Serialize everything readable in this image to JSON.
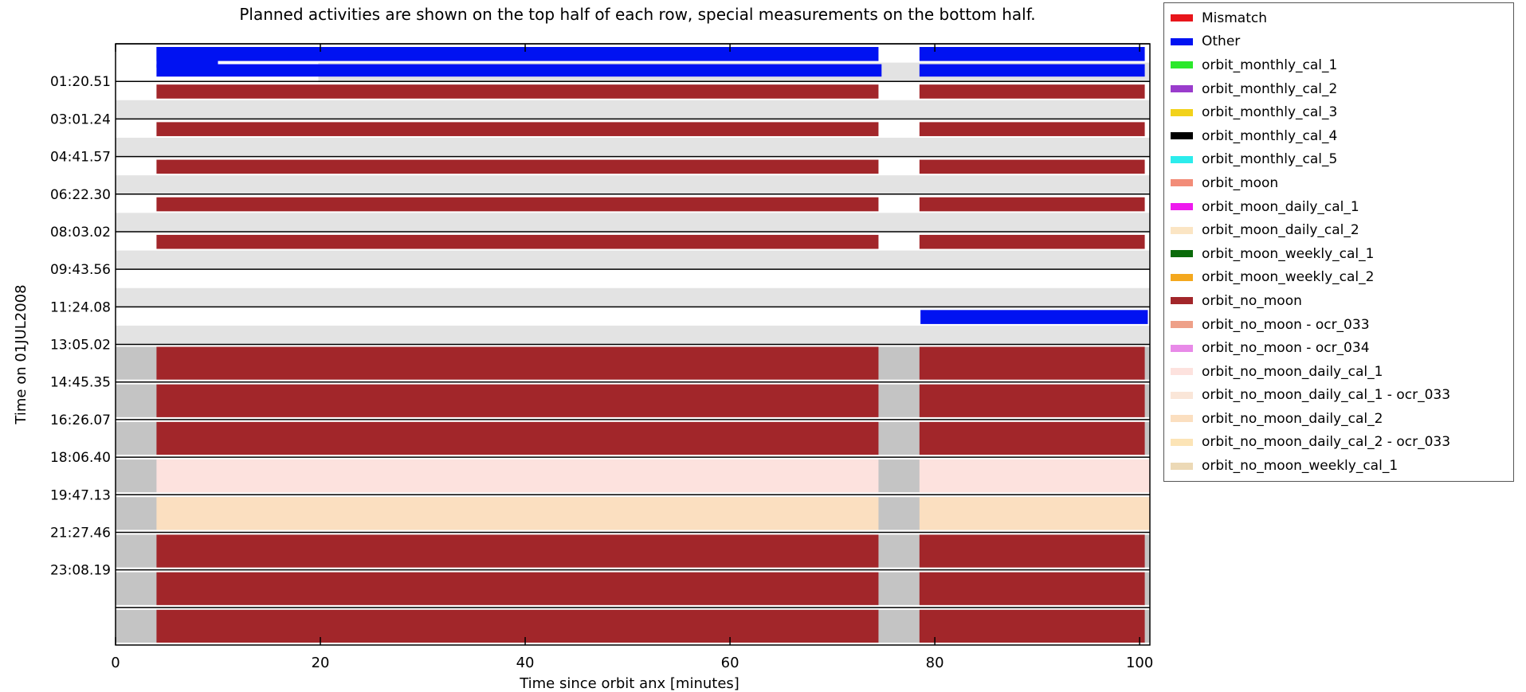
{
  "chart_data": {
    "type": "timeline",
    "title": "Planned activities are shown on the top half of each row, special measurements on the bottom half.",
    "xlabel": "Time since orbit anx [minutes]",
    "ylabel": "Time on 01JUL2008",
    "xlim": [
      0,
      101
    ],
    "xticks": [
      0,
      20,
      40,
      60,
      80,
      100
    ],
    "row_labels": [
      "",
      "01:20.51",
      "03:01.24",
      "04:41.57",
      "06:22.30",
      "08:03.02",
      "09:43.56",
      "11:24.08",
      "13:05.02",
      "14:45.35",
      "16:26.07",
      "18:06.40",
      "19:47.13",
      "21:27.46",
      "23:08.19"
    ],
    "legend": [
      {
        "name": "Mismatch",
        "color": "#e8151b"
      },
      {
        "name": "Other",
        "color": "#0012f2"
      },
      {
        "name": "orbit_monthly_cal_1",
        "color": "#2ce82c"
      },
      {
        "name": "orbit_monthly_cal_2",
        "color": "#9a3ccc"
      },
      {
        "name": "orbit_monthly_cal_3",
        "color": "#f2d21a"
      },
      {
        "name": "orbit_monthly_cal_4",
        "color": "#000000"
      },
      {
        "name": "orbit_monthly_cal_5",
        "color": "#2cecec"
      },
      {
        "name": "orbit_moon",
        "color": "#f28c78"
      },
      {
        "name": "orbit_moon_daily_cal_1",
        "color": "#ee1aee"
      },
      {
        "name": "orbit_moon_daily_cal_2",
        "color": "#fbe5c4"
      },
      {
        "name": "orbit_moon_weekly_cal_1",
        "color": "#0a6a0a"
      },
      {
        "name": "orbit_moon_weekly_cal_2",
        "color": "#f4a81e"
      },
      {
        "name": "orbit_no_moon",
        "color": "#a2262a"
      },
      {
        "name": "orbit_no_moon - ocr_033",
        "color": "#eea088"
      },
      {
        "name": "orbit_no_moon - ocr_034",
        "color": "#e88ae8"
      },
      {
        "name": "orbit_no_moon_daily_cal_1",
        "color": "#fde2de"
      },
      {
        "name": "orbit_no_moon_daily_cal_1 - ocr_033",
        "color": "#fae6d8"
      },
      {
        "name": "orbit_no_moon_daily_cal_2",
        "color": "#fbdfc0"
      },
      {
        "name": "orbit_no_moon_daily_cal_2 - ocr_033",
        "color": "#fce4b6"
      },
      {
        "name": "orbit_no_moon_weekly_cal_1",
        "color": "#ecd9b6"
      }
    ],
    "rows": [
      {
        "top": [
          {
            "start": 4,
            "end": 74.5,
            "series": "Other"
          },
          {
            "start": 78.5,
            "end": 100.5,
            "series": "Other"
          },
          {
            "start": 4,
            "end": 10,
            "series": "Other"
          }
        ],
        "bottom": [
          {
            "start": 4,
            "end": 74.8,
            "series": "Other"
          },
          {
            "start": 78.5,
            "end": 100.5,
            "series": "Other"
          }
        ],
        "bottom_special": [
          {
            "start": 19.8,
            "end": 101,
            "series": "none"
          }
        ]
      },
      {
        "top": [
          {
            "start": 4,
            "end": 74.5,
            "series": "orbit_no_moon"
          },
          {
            "start": 78.5,
            "end": 100.5,
            "series": "orbit_no_moon"
          }
        ],
        "bottom_special": [
          {
            "start": 0,
            "end": 101,
            "series": "none"
          }
        ]
      },
      {
        "top": [
          {
            "start": 4,
            "end": 74.5,
            "series": "orbit_no_moon"
          },
          {
            "start": 78.5,
            "end": 100.5,
            "series": "orbit_no_moon"
          }
        ],
        "bottom_special": [
          {
            "start": 0,
            "end": 101,
            "series": "none"
          }
        ]
      },
      {
        "top": [
          {
            "start": 4,
            "end": 74.5,
            "series": "orbit_no_moon"
          },
          {
            "start": 78.5,
            "end": 100.5,
            "series": "orbit_no_moon"
          }
        ],
        "bottom_special": [
          {
            "start": 0,
            "end": 101,
            "series": "none"
          }
        ]
      },
      {
        "top": [
          {
            "start": 4,
            "end": 74.5,
            "series": "orbit_no_moon"
          },
          {
            "start": 78.5,
            "end": 100.5,
            "series": "orbit_no_moon"
          }
        ],
        "bottom_special": [
          {
            "start": 0,
            "end": 101,
            "series": "none"
          }
        ]
      },
      {
        "top": [
          {
            "start": 4,
            "end": 74.5,
            "series": "orbit_no_moon"
          },
          {
            "start": 78.5,
            "end": 100.5,
            "series": "orbit_no_moon"
          }
        ],
        "bottom_special": [
          {
            "start": 0,
            "end": 101,
            "series": "none"
          }
        ]
      },
      {
        "top": [],
        "bottom_special": [
          {
            "start": 0,
            "end": 101,
            "series": "none"
          }
        ]
      },
      {
        "top": [
          {
            "start": 78.6,
            "end": 100.8,
            "series": "Other"
          }
        ],
        "bottom_special": [
          {
            "start": 0,
            "end": 101,
            "series": "none"
          }
        ]
      },
      {
        "full": [
          {
            "start": 4,
            "end": 74.5,
            "series": "orbit_no_moon"
          },
          {
            "start": 78.5,
            "end": 100.5,
            "series": "orbit_no_moon"
          }
        ]
      },
      {
        "full": [
          {
            "start": 4,
            "end": 74.5,
            "series": "orbit_no_moon"
          },
          {
            "start": 78.5,
            "end": 100.5,
            "series": "orbit_no_moon"
          }
        ]
      },
      {
        "full": [
          {
            "start": 4,
            "end": 74.5,
            "series": "orbit_no_moon"
          },
          {
            "start": 78.5,
            "end": 100.5,
            "series": "orbit_no_moon"
          }
        ]
      },
      {
        "full": [
          {
            "start": 4,
            "end": 74.5,
            "series": "orbit_no_moon_daily_cal_1"
          },
          {
            "start": 78.5,
            "end": 101,
            "series": "orbit_no_moon_daily_cal_1"
          }
        ]
      },
      {
        "full": [
          {
            "start": 4,
            "end": 74.5,
            "series": "orbit_no_moon_daily_cal_2"
          },
          {
            "start": 78.5,
            "end": 101,
            "series": "orbit_no_moon_daily_cal_2"
          }
        ]
      },
      {
        "full": [
          {
            "start": 4,
            "end": 74.5,
            "series": "orbit_no_moon"
          },
          {
            "start": 78.5,
            "end": 100.5,
            "series": "orbit_no_moon"
          }
        ]
      },
      {
        "full": [
          {
            "start": 4,
            "end": 74.5,
            "series": "orbit_no_moon"
          },
          {
            "start": 78.5,
            "end": 100.5,
            "series": "orbit_no_moon"
          }
        ]
      },
      {
        "full": [
          {
            "start": 4,
            "end": 74.5,
            "series": "orbit_no_moon"
          },
          {
            "start": 78.5,
            "end": 100.5,
            "series": "orbit_no_moon"
          }
        ]
      }
    ],
    "grid": false,
    "legend_placement": "right"
  }
}
